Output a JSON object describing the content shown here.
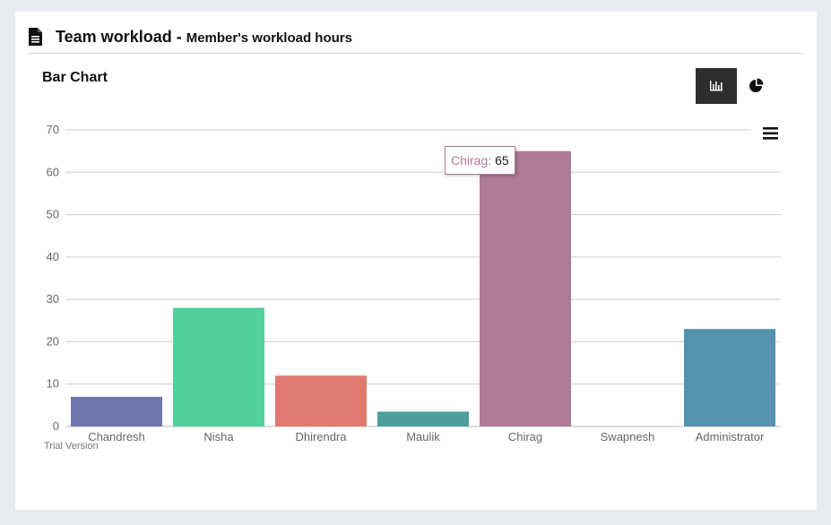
{
  "header": {
    "title": "Team workload - ",
    "subtitle": "Member's workload hours"
  },
  "chart_title": "Bar Chart",
  "icons": {
    "document": "document-icon",
    "bar_toggle": "bar-chart-icon",
    "pie_toggle": "pie-chart-icon",
    "menu": "hamburger-menu-icon"
  },
  "tooltip": {
    "label": "Chirag:",
    "value": "65"
  },
  "trial_text": "Trial Version",
  "chart_data": {
    "type": "bar",
    "title": "Bar Chart",
    "categories": [
      "Chandresh",
      "Nisha",
      "Dhirendra",
      "Maulik",
      "Chirag",
      "Swapnesh",
      "Administrator"
    ],
    "values": [
      7,
      28,
      12,
      3.5,
      65,
      0,
      23
    ],
    "colors": [
      "#6f78ad",
      "#51cf9d",
      "#e07a70",
      "#4e9e9e",
      "#ad7a97",
      "#c7b04a",
      "#5592ae"
    ],
    "ylim": [
      0,
      70
    ],
    "yticks": [
      0,
      10,
      20,
      30,
      40,
      50,
      60,
      70
    ],
    "grid": true,
    "legend": "none"
  }
}
